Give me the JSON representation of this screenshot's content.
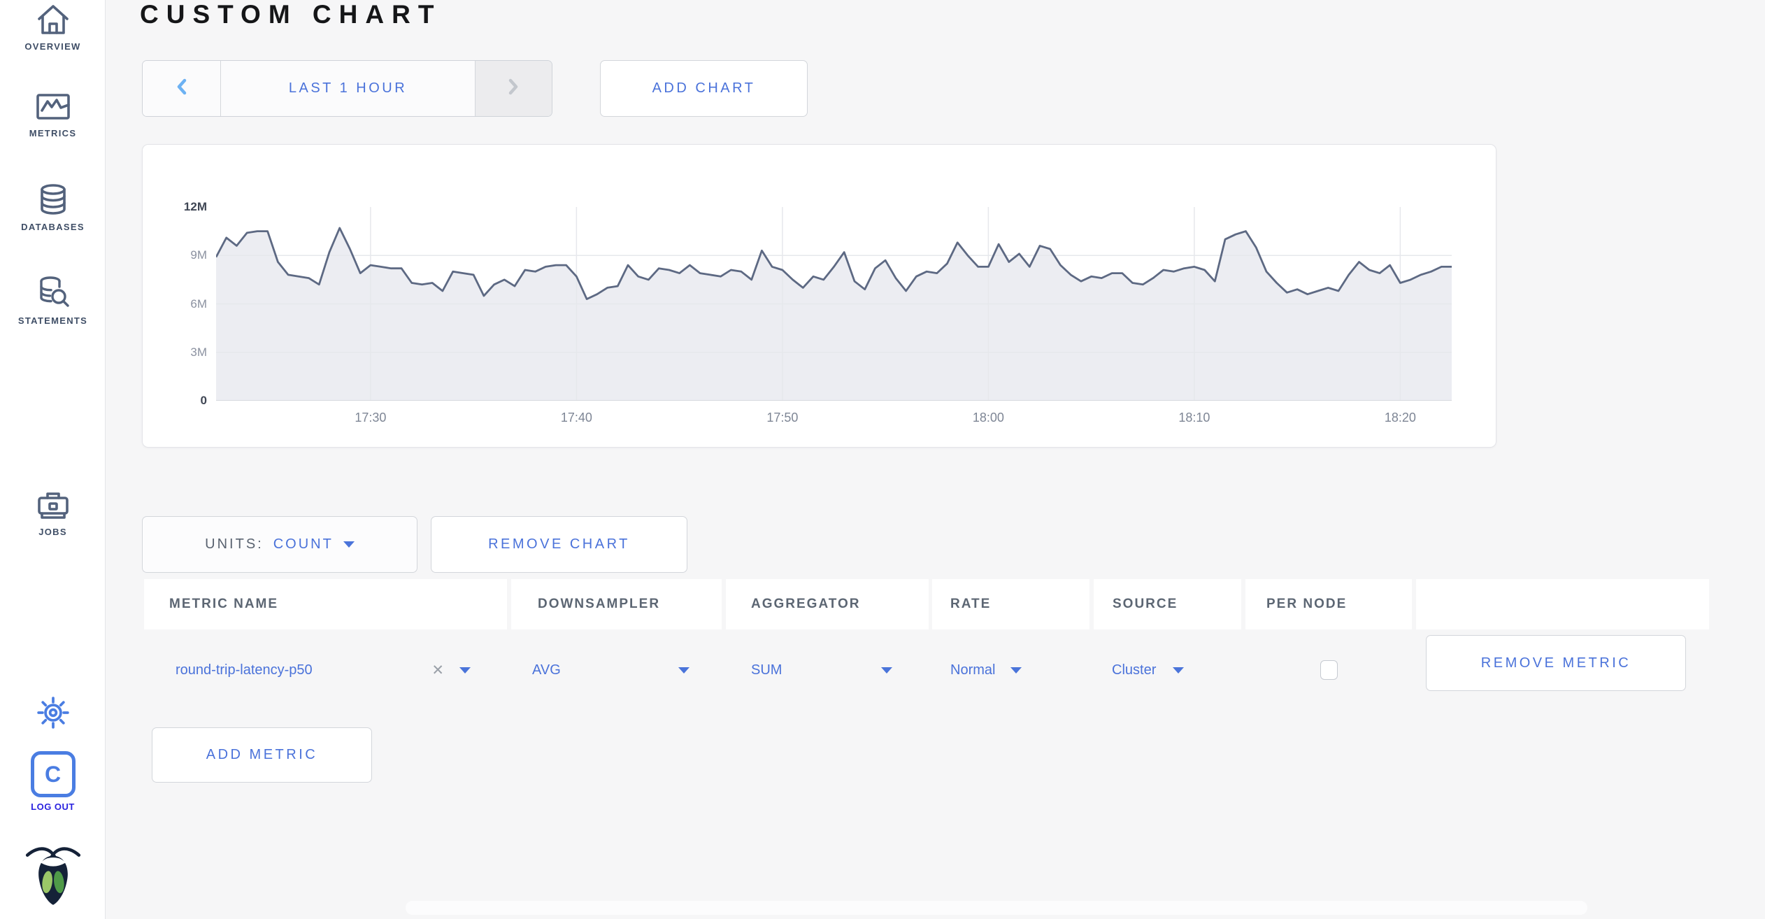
{
  "sidebar": {
    "items": [
      {
        "label": "OVERVIEW",
        "icon": "home-icon"
      },
      {
        "label": "METRICS",
        "icon": "metrics-graph-icon"
      },
      {
        "label": "DATABASES",
        "icon": "database-icon"
      },
      {
        "label": "STATEMENTS",
        "icon": "database-search-icon"
      },
      {
        "label": "JOBS",
        "icon": "briefcase-icon"
      }
    ],
    "settings_icon": "gear-icon",
    "logout": {
      "label": "LOG OUT",
      "icon": "cockroach-c-logo"
    },
    "brand_icon": "cockroach-bug-logo"
  },
  "header": {
    "title": "CUSTOM CHART"
  },
  "time_nav": {
    "range_label": "LAST 1 HOUR"
  },
  "actions": {
    "add_chart": "ADD CHART",
    "remove_chart": "REMOVE CHART",
    "add_metric": "ADD METRIC",
    "remove_metric": "REMOVE METRIC"
  },
  "units": {
    "label": "UNITS:",
    "value": "COUNT"
  },
  "metrics_table": {
    "columns": [
      "METRIC NAME",
      "DOWNSAMPLER",
      "AGGREGATOR",
      "RATE",
      "SOURCE",
      "PER NODE"
    ],
    "rows": [
      {
        "metric": "round-trip-latency-p50",
        "downsampler": "AVG",
        "aggregator": "SUM",
        "rate": "Normal",
        "source": "Cluster",
        "per_node": false
      }
    ]
  },
  "chart_data": {
    "type": "area",
    "title": "",
    "xlabel": "",
    "ylabel": "",
    "units": "count",
    "ylim": [
      0,
      12000000
    ],
    "grid": true,
    "legend": "none",
    "domain_minutes": 60,
    "start_time": "17:22:30",
    "end_time": "18:22:30",
    "y_ticks": [
      {
        "label": "12M",
        "value": 12,
        "emphasis": true
      },
      {
        "label": "9M",
        "value": 9,
        "emphasis": false
      },
      {
        "label": "6M",
        "value": 6,
        "emphasis": false
      },
      {
        "label": "3M",
        "value": 3,
        "emphasis": false
      },
      {
        "label": "0",
        "value": 0,
        "emphasis": true
      }
    ],
    "x_ticks": [
      {
        "label": "17:30",
        "t": 7.5
      },
      {
        "label": "17:40",
        "t": 17.5
      },
      {
        "label": "17:50",
        "t": 27.5
      },
      {
        "label": "18:00",
        "t": 37.5
      },
      {
        "label": "18:10",
        "t": 47.5
      },
      {
        "label": "18:20",
        "t": 57.5
      }
    ],
    "series": [
      {
        "name": "round-trip-latency-p50",
        "values_millions": [
          8.9,
          10.1,
          9.6,
          10.4,
          10.5,
          10.5,
          8.6,
          7.8,
          7.7,
          7.6,
          7.2,
          9.2,
          10.7,
          9.4,
          7.9,
          8.4,
          8.3,
          8.2,
          8.2,
          7.3,
          7.2,
          7.3,
          6.8,
          8.0,
          7.9,
          7.8,
          6.5,
          7.2,
          7.5,
          7.1,
          8.1,
          8.0,
          8.3,
          8.4,
          8.4,
          7.7,
          6.3,
          6.6,
          7.0,
          7.1,
          8.4,
          7.7,
          7.5,
          8.2,
          8.1,
          7.9,
          8.4,
          7.9,
          7.8,
          7.7,
          8.1,
          8.0,
          7.5,
          9.3,
          8.3,
          8.1,
          7.5,
          7.0,
          7.7,
          7.5,
          8.3,
          9.2,
          7.4,
          6.9,
          8.2,
          8.7,
          7.6,
          6.8,
          7.7,
          8.0,
          7.9,
          8.5,
          9.8,
          9.0,
          8.3,
          8.3,
          9.7,
          8.6,
          9.1,
          8.3,
          9.6,
          9.4,
          8.4,
          7.8,
          7.4,
          7.7,
          7.6,
          7.9,
          7.9,
          7.3,
          7.2,
          7.6,
          8.1,
          8.0,
          8.2,
          8.3,
          8.1,
          7.4,
          10.0,
          10.3,
          10.5,
          9.5,
          8.0,
          7.3,
          6.7,
          6.9,
          6.6,
          6.8,
          7.0,
          6.8,
          7.8,
          8.6,
          8.1,
          7.9,
          8.4,
          7.3,
          7.5,
          7.8,
          8.0,
          8.3,
          8.3
        ]
      }
    ],
    "line_color": "#5d6983",
    "fill_color": "#ecedf2",
    "grid_color": "#e6e8ec"
  },
  "colors": {
    "accent_blue": "#4a72da",
    "light_blue_chevron": "#6db2f3",
    "logo_blue": "#4a7de2",
    "logout_blue": "#2a22df",
    "sidebar_slate": "#3f4e66",
    "page_bg": "#f6f6f7"
  }
}
